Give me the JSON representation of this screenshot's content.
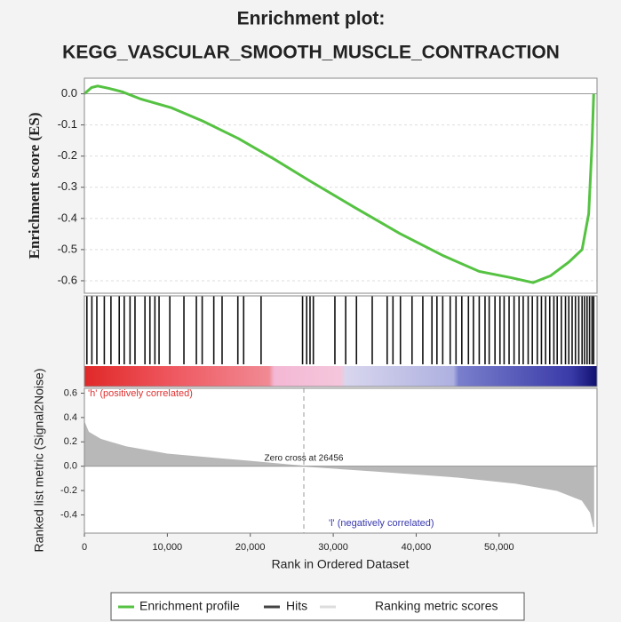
{
  "chart_data": [
    {
      "type": "line",
      "title": "Enrichment plot:",
      "subtitle": "KEGG_VASCULAR_SMOOTH_MUSCLE_CONTRACTION",
      "ylabel": "Enrichment score (ES)",
      "xlim": [
        0,
        61800
      ],
      "ylim": [
        -0.64,
        0.05
      ],
      "yticks": [
        {
          "value": 0,
          "label": "0.0"
        },
        -0.1,
        -0.2,
        -0.3,
        -0.4,
        -0.5,
        -0.6
      ],
      "grid": true,
      "series": [
        {
          "name": "Enrichment profile",
          "color": "#55c242",
          "x": [
            0,
            860,
            1600,
            3000,
            4600,
            6800,
            10500,
            14300,
            18600,
            22900,
            27200,
            32600,
            38000,
            43300,
            47600,
            51400,
            54100,
            56200,
            58400,
            60000,
            60800,
            61200,
            61400
          ],
          "values": [
            0,
            0.02,
            0.025,
            0.017,
            0.006,
            -0.017,
            -0.045,
            -0.088,
            -0.144,
            -0.21,
            -0.28,
            -0.365,
            -0.448,
            -0.52,
            -0.57,
            -0.59,
            -0.606,
            -0.584,
            -0.54,
            -0.5,
            -0.385,
            -0.159,
            0
          ]
        }
      ]
    },
    {
      "type": "hits",
      "xlim": [
        0,
        61800
      ],
      "series": [
        {
          "name": "Hits",
          "color": "#111111",
          "x": [
            300,
            900,
            1500,
            2400,
            3200,
            4200,
            4800,
            5500,
            6100,
            7300,
            7900,
            8500,
            9000,
            10300,
            12000,
            13500,
            14200,
            15600,
            16600,
            18500,
            19200,
            21300,
            26300,
            26800,
            27200,
            27600,
            30200,
            31500,
            32800,
            34700,
            36500,
            37200,
            38100,
            39500,
            40800,
            41900,
            42500,
            43200,
            44100,
            44800,
            45500,
            46300,
            46900,
            47600,
            48300,
            48800,
            49500,
            50100,
            50600,
            51200,
            51800,
            52400,
            52900,
            53500,
            54000,
            54600,
            55100,
            55600,
            56100,
            56600,
            57000,
            57500,
            58000,
            58400,
            58800,
            59200,
            59600,
            60000,
            60300,
            60600,
            60900,
            61200,
            61400
          ]
        }
      ]
    },
    {
      "type": "area",
      "xlabel": "Rank in Ordered Dataset",
      "ylabel": "Ranked list metric (Signal2Noise)",
      "xlim": [
        0,
        61800
      ],
      "ylim": [
        -0.55,
        0.64
      ],
      "xticks": [
        0,
        {
          "value": 10000,
          "label": "10,000"
        },
        {
          "value": 20000,
          "label": "20,000"
        },
        {
          "value": 30000,
          "label": "30,000"
        },
        {
          "value": 40000,
          "label": "40,000"
        },
        {
          "value": 50000,
          "label": "50,000"
        }
      ],
      "yticks": [
        0.6,
        0.4,
        0.2,
        {
          "value": 0,
          "label": "0.0"
        },
        -0.2,
        -0.4
      ],
      "zero_cross": 26456,
      "zero_cross_label": "Zero cross at 26456",
      "positive_label": "'h' (positively correlated)",
      "negative_label": "'l' (negatively correlated)",
      "series": [
        {
          "name": "Ranking metric scores",
          "color": "#b8b8b8",
          "x": [
            0,
            500,
            2000,
            5000,
            10000,
            20000,
            26456,
            35000,
            45000,
            52000,
            57000,
            60000,
            61000,
            61400
          ],
          "values": [
            0.36,
            0.28,
            0.22,
            0.16,
            0.1,
            0.04,
            0,
            -0.04,
            -0.09,
            -0.14,
            -0.2,
            -0.28,
            -0.38,
            -0.5
          ]
        }
      ]
    }
  ]
}
